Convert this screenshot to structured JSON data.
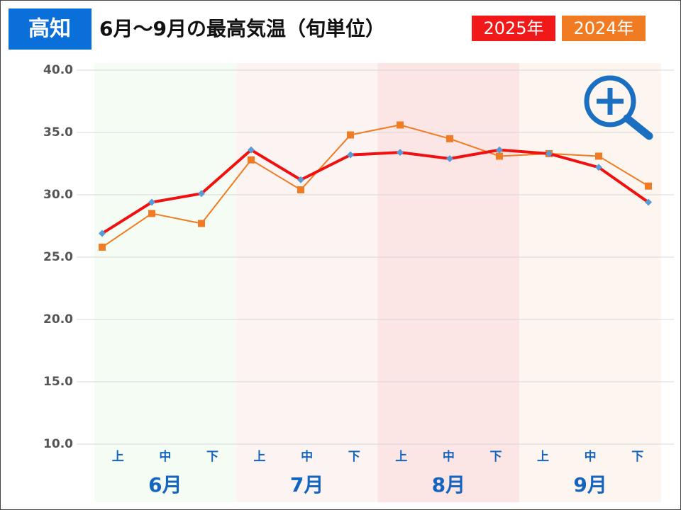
{
  "chart_data": {
    "type": "line",
    "badge": "高知",
    "title": "6月～9月の最高気温（旬単位）",
    "categories": [
      "上",
      "中",
      "下",
      "上",
      "中",
      "下",
      "上",
      "中",
      "下",
      "上",
      "中",
      "下"
    ],
    "groups": [
      {
        "label": "6月",
        "color": "#f4fcf4"
      },
      {
        "label": "7月",
        "color": "#fcf3f3"
      },
      {
        "label": "8月",
        "color": "#fce5e5"
      },
      {
        "label": "9月",
        "color": "#fdf6f0"
      }
    ],
    "series": [
      {
        "name": "2024年",
        "color": "#f07b22",
        "marker": "square",
        "values": [
          25.8,
          28.5,
          27.7,
          32.8,
          30.4,
          34.8,
          35.6,
          34.5,
          33.1,
          33.3,
          33.1,
          30.7
        ]
      },
      {
        "name": "2025年",
        "color": "#f01010",
        "marker": "diamond",
        "values": [
          26.9,
          29.4,
          30.1,
          33.6,
          31.2,
          33.2,
          33.4,
          32.9,
          33.6,
          33.3,
          32.2,
          29.4
        ]
      }
    ],
    "ylim": [
      10,
      40
    ],
    "yticks": [
      {
        "value": 10,
        "label": "10.0"
      },
      {
        "value": 15,
        "label": "15.0"
      },
      {
        "value": 20,
        "label": "20.0"
      },
      {
        "value": 25,
        "label": "25.0"
      },
      {
        "value": 30,
        "label": "30.0"
      },
      {
        "value": 35,
        "label": "35.0"
      },
      {
        "value": 40,
        "label": "40.0"
      }
    ],
    "grid": true
  }
}
